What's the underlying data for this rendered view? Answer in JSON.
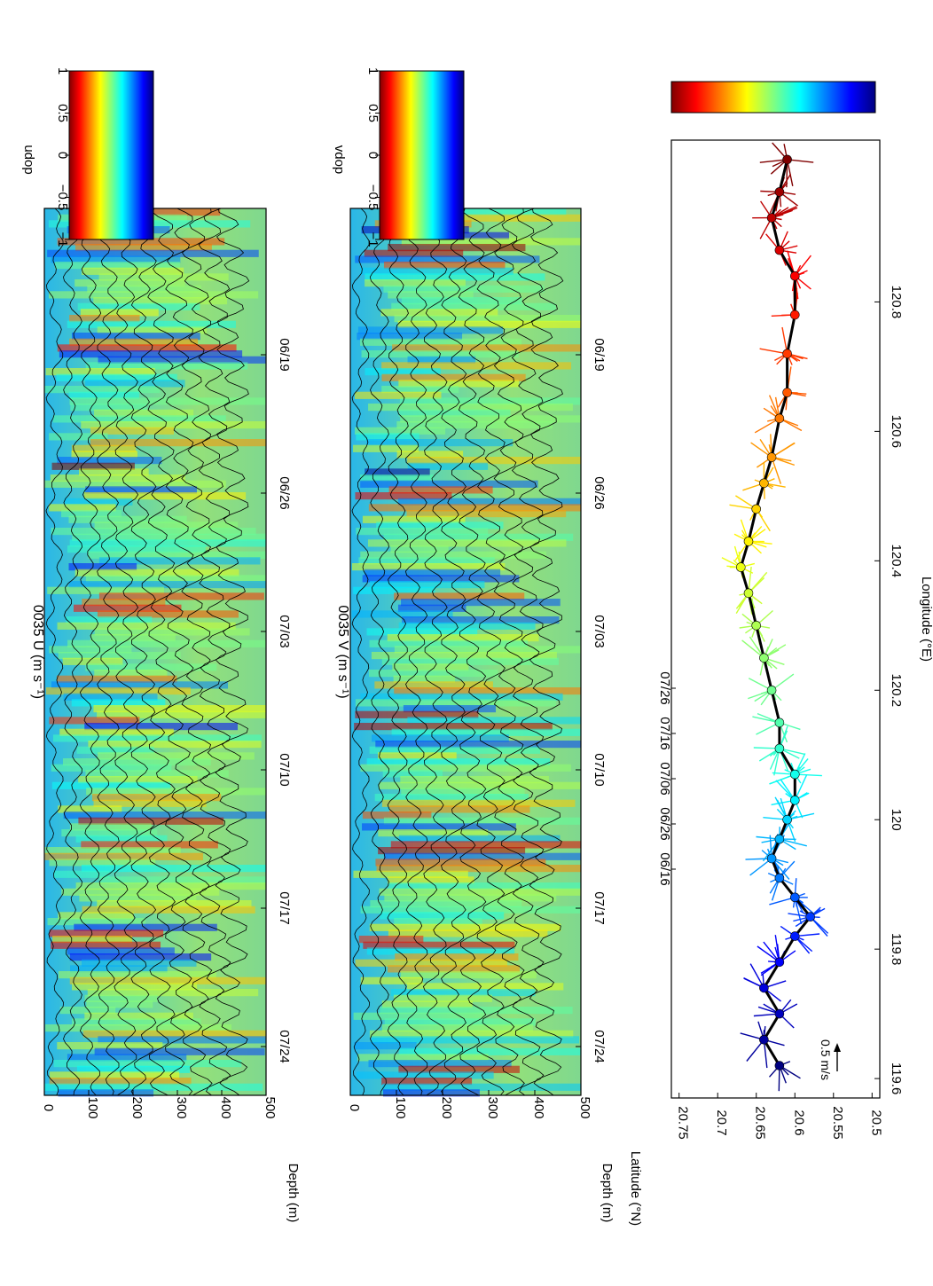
{
  "chart_data": [
    {
      "type": "heatmap",
      "title": "0035  U  (m s⁻¹)",
      "xlabel": "",
      "ylabel": "Depth (m)",
      "ylim": [
        0,
        500
      ],
      "yticks": [
        "0",
        "100",
        "200",
        "300",
        "400",
        "500"
      ],
      "xticks": [
        "06/19",
        "06/26",
        "07/03",
        "07/10",
        "07/17",
        "07/24"
      ],
      "colorbar": {
        "label": "udop",
        "ticks": [
          "1",
          "0.5",
          "0",
          "−0.5",
          "−1"
        ],
        "range": [
          -1,
          1
        ]
      }
    },
    {
      "type": "heatmap",
      "title": "0035  V  (m s⁻¹)",
      "xlabel": "",
      "ylabel": "Depth (m)",
      "ylim": [
        0,
        500
      ],
      "yticks": [
        "0",
        "100",
        "200",
        "300",
        "400",
        "500"
      ],
      "xticks": [
        "06/19",
        "06/26",
        "07/03",
        "07/10",
        "07/17",
        "07/24"
      ],
      "colorbar": {
        "label": "vdop",
        "ticks": [
          "1",
          "0.5",
          "0",
          "−0.5",
          "−1"
        ],
        "range": [
          -1,
          1
        ]
      }
    },
    {
      "type": "scatter",
      "title": "",
      "xlabel": "Longitude (°E)",
      "ylabel": "Latitude (°N)",
      "xlim": [
        119.57,
        121.05
      ],
      "ylim": [
        20.49,
        20.76
      ],
      "xticks": [
        "119.6",
        "119.8",
        "120",
        "120.2",
        "120.4",
        "120.6",
        "120.8"
      ],
      "yticks": [
        "20.5",
        "20.55",
        "20.6",
        "20.65",
        "20.7",
        "20.75"
      ],
      "annotation": "0.5 m/s",
      "colorbar": {
        "ticks": [
          "07/26",
          "07/16",
          "07/06",
          "06/26",
          "06/16"
        ]
      },
      "track": [
        [
          121.02,
          20.61
        ],
        [
          120.97,
          20.62
        ],
        [
          120.93,
          20.63
        ],
        [
          120.88,
          20.62
        ],
        [
          120.84,
          20.6
        ],
        [
          120.78,
          20.6
        ],
        [
          120.72,
          20.61
        ],
        [
          120.66,
          20.61
        ],
        [
          120.62,
          20.62
        ],
        [
          120.56,
          20.63
        ],
        [
          120.52,
          20.64
        ],
        [
          120.48,
          20.65
        ],
        [
          120.43,
          20.66
        ],
        [
          120.39,
          20.67
        ],
        [
          120.35,
          20.66
        ],
        [
          120.3,
          20.65
        ],
        [
          120.25,
          20.64
        ],
        [
          120.2,
          20.63
        ],
        [
          120.15,
          20.62
        ],
        [
          120.11,
          20.62
        ],
        [
          120.07,
          20.6
        ],
        [
          120.03,
          20.6
        ],
        [
          120.0,
          20.61
        ],
        [
          119.97,
          20.62
        ],
        [
          119.94,
          20.63
        ],
        [
          119.91,
          20.62
        ],
        [
          119.88,
          20.6
        ],
        [
          119.85,
          20.58
        ],
        [
          119.82,
          20.6
        ],
        [
          119.78,
          20.62
        ],
        [
          119.74,
          20.64
        ],
        [
          119.7,
          20.62
        ],
        [
          119.66,
          20.64
        ],
        [
          119.62,
          20.62
        ]
      ]
    }
  ]
}
